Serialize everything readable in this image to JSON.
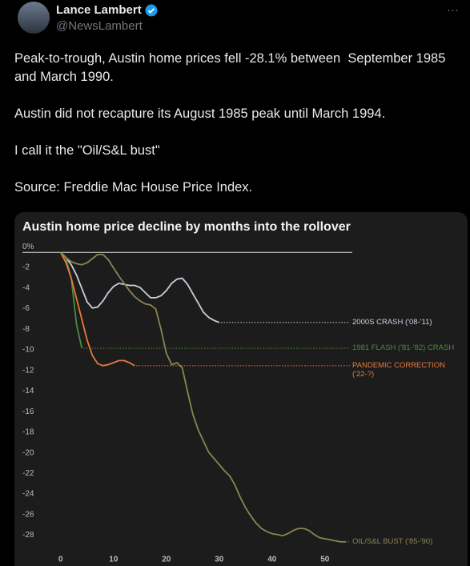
{
  "tweet": {
    "author": "Lance Lambert",
    "handle": "@NewsLambert",
    "more": "···",
    "paragraphs": [
      "Peak-to-trough, Austin home prices fell -28.1% between  September 1985 and March 1990.",
      "Austin did not recapture its August 1985 peak until March 1994.",
      "I call it the \"Oil/S&L bust\"",
      "Source: Freddie Mac House Price Index."
    ]
  },
  "chart_data": {
    "type": "line",
    "title": "Austin home price decline by months into the rollover",
    "xlim": [
      -8.3,
      57
    ],
    "ylim": [
      -29.2,
      0.8
    ],
    "xticks": [
      0,
      10,
      20,
      30,
      40,
      50
    ],
    "yticks": [
      {
        "value": 0,
        "label": "0%"
      },
      -2,
      -4,
      -6,
      -8,
      -10,
      -12,
      -14,
      -16,
      -18,
      -20,
      -22,
      -24,
      -26,
      -28
    ],
    "series": [
      {
        "name": "2000S CRASH ('08-'11)",
        "color": "#c9d0de",
        "x": [
          0,
          1,
          2,
          3,
          4,
          5,
          6,
          7,
          8,
          9,
          10,
          11,
          12,
          13,
          14,
          15,
          16,
          17,
          18,
          19,
          20,
          21,
          22,
          23,
          24,
          25,
          26,
          27,
          28,
          29,
          30
        ],
        "values": [
          0,
          -0.5,
          -1.2,
          -2.2,
          -3.5,
          -4.8,
          -5.4,
          -5.3,
          -4.7,
          -3.9,
          -3.3,
          -3.0,
          -3.1,
          -3.2,
          -3.2,
          -3.4,
          -3.9,
          -4.4,
          -4.4,
          -4.2,
          -3.7,
          -3.0,
          -2.6,
          -2.5,
          -3.1,
          -4.0,
          -4.9,
          -5.8,
          -6.3,
          -6.6,
          -6.8
        ]
      },
      {
        "name": "1981 FLASH ('81-'82) CRASH",
        "color": "#4c8c3a",
        "x": [
          0,
          1,
          2,
          3,
          4
        ],
        "values": [
          0,
          -0.6,
          -2.5,
          -7.0,
          -9.3
        ]
      },
      {
        "name": "PANDEMIC CORRECTION ('22-?)",
        "color": "#e8793a",
        "x": [
          0,
          1,
          2,
          3,
          4,
          5,
          6,
          7,
          8,
          9,
          10,
          11,
          12,
          13,
          14
        ],
        "values": [
          0,
          -1.0,
          -2.5,
          -4.5,
          -6.5,
          -8.5,
          -10.0,
          -10.8,
          -11.0,
          -10.9,
          -10.7,
          -10.5,
          -10.5,
          -10.7,
          -11.0
        ]
      },
      {
        "name": "OIL/S&L BUST ('85-'90)",
        "color": "#8a8552",
        "x": [
          0,
          1,
          2,
          3,
          4,
          5,
          6,
          7,
          8,
          9,
          10,
          11,
          12,
          13,
          14,
          15,
          16,
          17,
          18,
          19,
          20,
          21,
          22,
          23,
          24,
          25,
          26,
          27,
          28,
          29,
          30,
          31,
          32,
          33,
          34,
          35,
          36,
          37,
          38,
          39,
          40,
          41,
          42,
          43,
          44,
          45,
          46,
          47,
          48,
          49,
          50,
          51,
          52,
          53,
          54
        ],
        "values": [
          0,
          -0.5,
          -0.9,
          -1.1,
          -1.2,
          -1.0,
          -0.6,
          -0.2,
          -0.2,
          -0.7,
          -1.5,
          -2.3,
          -3.0,
          -3.7,
          -4.3,
          -4.7,
          -5.0,
          -5.1,
          -5.5,
          -7.5,
          -9.8,
          -10.9,
          -10.7,
          -11.2,
          -13.5,
          -15.7,
          -17.2,
          -18.3,
          -19.4,
          -20.0,
          -20.6,
          -21.2,
          -21.7,
          -22.6,
          -23.8,
          -24.8,
          -25.6,
          -26.3,
          -26.8,
          -27.1,
          -27.3,
          -27.4,
          -27.5,
          -27.3,
          -27.0,
          -26.8,
          -26.8,
          -27.0,
          -27.4,
          -27.7,
          -27.8,
          -27.9,
          -28.0,
          -28.1,
          -28.1
        ]
      }
    ]
  }
}
